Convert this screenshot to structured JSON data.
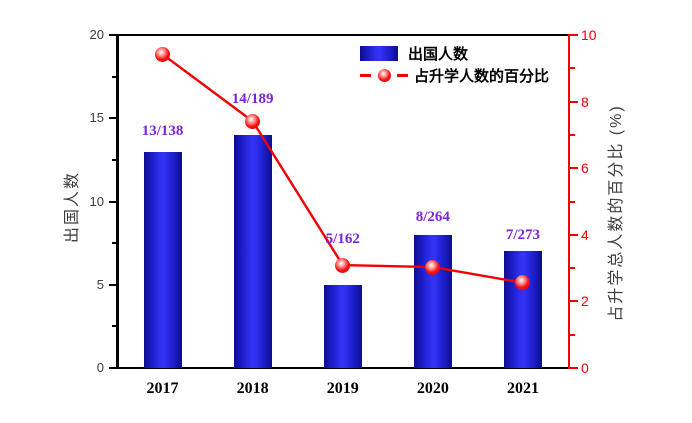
{
  "chart_data": {
    "type": "bar+line",
    "categories": [
      "2017",
      "2018",
      "2019",
      "2020",
      "2021"
    ],
    "series": [
      {
        "name": "出国人数",
        "type": "bar",
        "axis": "left",
        "values": [
          13,
          14,
          5,
          8,
          7
        ]
      },
      {
        "name": "占升学人数的百分比",
        "type": "line",
        "axis": "right",
        "values": [
          9.42,
          7.41,
          3.09,
          3.03,
          2.56
        ]
      }
    ],
    "point_labels": [
      {
        "text": "13/138",
        "y_left_units": 14.2
      },
      {
        "text": "14/189",
        "y_left_units": 16.1
      },
      {
        "text": "5/162",
        "y_left_units": 7.7
      },
      {
        "text": "8/264",
        "y_left_units": 9.0
      },
      {
        "text": "7/273",
        "y_left_units": 7.9
      }
    ],
    "axes": {
      "left": {
        "title": "出国人数",
        "min": 0,
        "max": 20,
        "major_ticks": [
          0,
          5,
          10,
          15,
          20
        ],
        "minor_ticks": [
          2.5,
          7.5,
          12.5,
          17.5
        ]
      },
      "right": {
        "title": "占升学总人数的百分比 (%)",
        "min": 0,
        "max": 10,
        "major_ticks": [
          0,
          2,
          4,
          6,
          8,
          10
        ],
        "minor_ticks": [
          1,
          3,
          5,
          7,
          9
        ]
      },
      "bottom": {
        "labels": [
          "2017",
          "2018",
          "2019",
          "2020",
          "2021"
        ]
      }
    },
    "legend": [
      {
        "swatch": "bar",
        "label": "出国人数"
      },
      {
        "swatch": "line-marker",
        "label": "占升学人数的百分比"
      }
    ],
    "colors": {
      "bar_edge": "#0d0d91",
      "bar_center": "#3232f5",
      "line": "#f20000",
      "marker": "#ff0000",
      "point_label": "#7e22dd",
      "right_axis": "#f40000",
      "left_tick_label": "#3c3c3c",
      "x_tick_label": "#000000",
      "axis_title": "#3f3f3f",
      "frame": "#000000"
    },
    "grid": false,
    "legend_position": "top-right-inside"
  }
}
